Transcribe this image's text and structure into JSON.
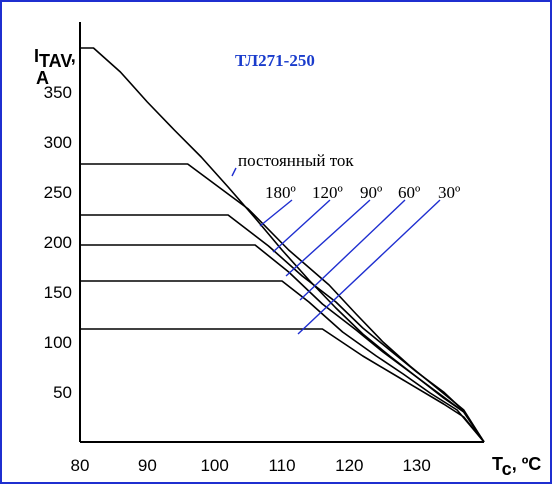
{
  "chart_data": {
    "type": "line",
    "title": "ТЛ271-250",
    "ylabel": {
      "main": "I",
      "sub": "TAV",
      "comma": ",",
      "unit": "A"
    },
    "xlabel": {
      "main": "T",
      "sub": "c",
      "unit": ", ºC"
    },
    "xlim": [
      80,
      140
    ],
    "ylim": [
      0,
      420
    ],
    "xticks": [
      80,
      90,
      100,
      110,
      120,
      130
    ],
    "yticks": [
      50,
      100,
      150,
      200,
      250,
      300,
      350
    ],
    "grid": false,
    "series": [
      {
        "name": "постоянный ток",
        "label": "постоянный ток",
        "x": [
          80,
          82,
          86,
          90,
          94,
          98,
          102,
          106,
          110,
          114,
          118,
          122,
          126,
          130,
          134,
          137,
          140
        ],
        "y": [
          394,
          394,
          370,
          340,
          312,
          285,
          255,
          224,
          192,
          162,
          134,
          108,
          86,
          65,
          44,
          30,
          0
        ]
      },
      {
        "name": "180º",
        "label": "180º",
        "x": [
          80,
          96,
          105,
          111,
          117,
          121,
          125,
          129,
          133,
          137,
          140
        ],
        "y": [
          278,
          278,
          233,
          192,
          157,
          128,
          100,
          76,
          54,
          32,
          0
        ]
      },
      {
        "name": "120º",
        "label": "120º",
        "x": [
          80,
          102,
          108,
          113,
          118,
          122,
          126,
          130,
          134,
          137,
          140
        ],
        "y": [
          227,
          227,
          196,
          166,
          140,
          114,
          92,
          70,
          50,
          31,
          0
        ]
      },
      {
        "name": "90º",
        "label": "90º",
        "x": [
          80,
          106,
          111,
          116,
          121,
          125,
          129,
          133,
          137,
          140
        ],
        "y": [
          197,
          197,
          170,
          138,
          112,
          90,
          70,
          50,
          30,
          0
        ]
      },
      {
        "name": "60º",
        "label": "60º",
        "x": [
          80,
          110,
          114,
          119,
          124,
          128,
          132,
          136,
          140
        ],
        "y": [
          161,
          161,
          140,
          110,
          86,
          68,
          49,
          32,
          0
        ]
      },
      {
        "name": "30º",
        "label": "30º",
        "x": [
          80,
          116,
          122,
          128,
          134,
          137,
          140
        ],
        "y": [
          113,
          113,
          86,
          62,
          38,
          25,
          0
        ]
      }
    ]
  }
}
